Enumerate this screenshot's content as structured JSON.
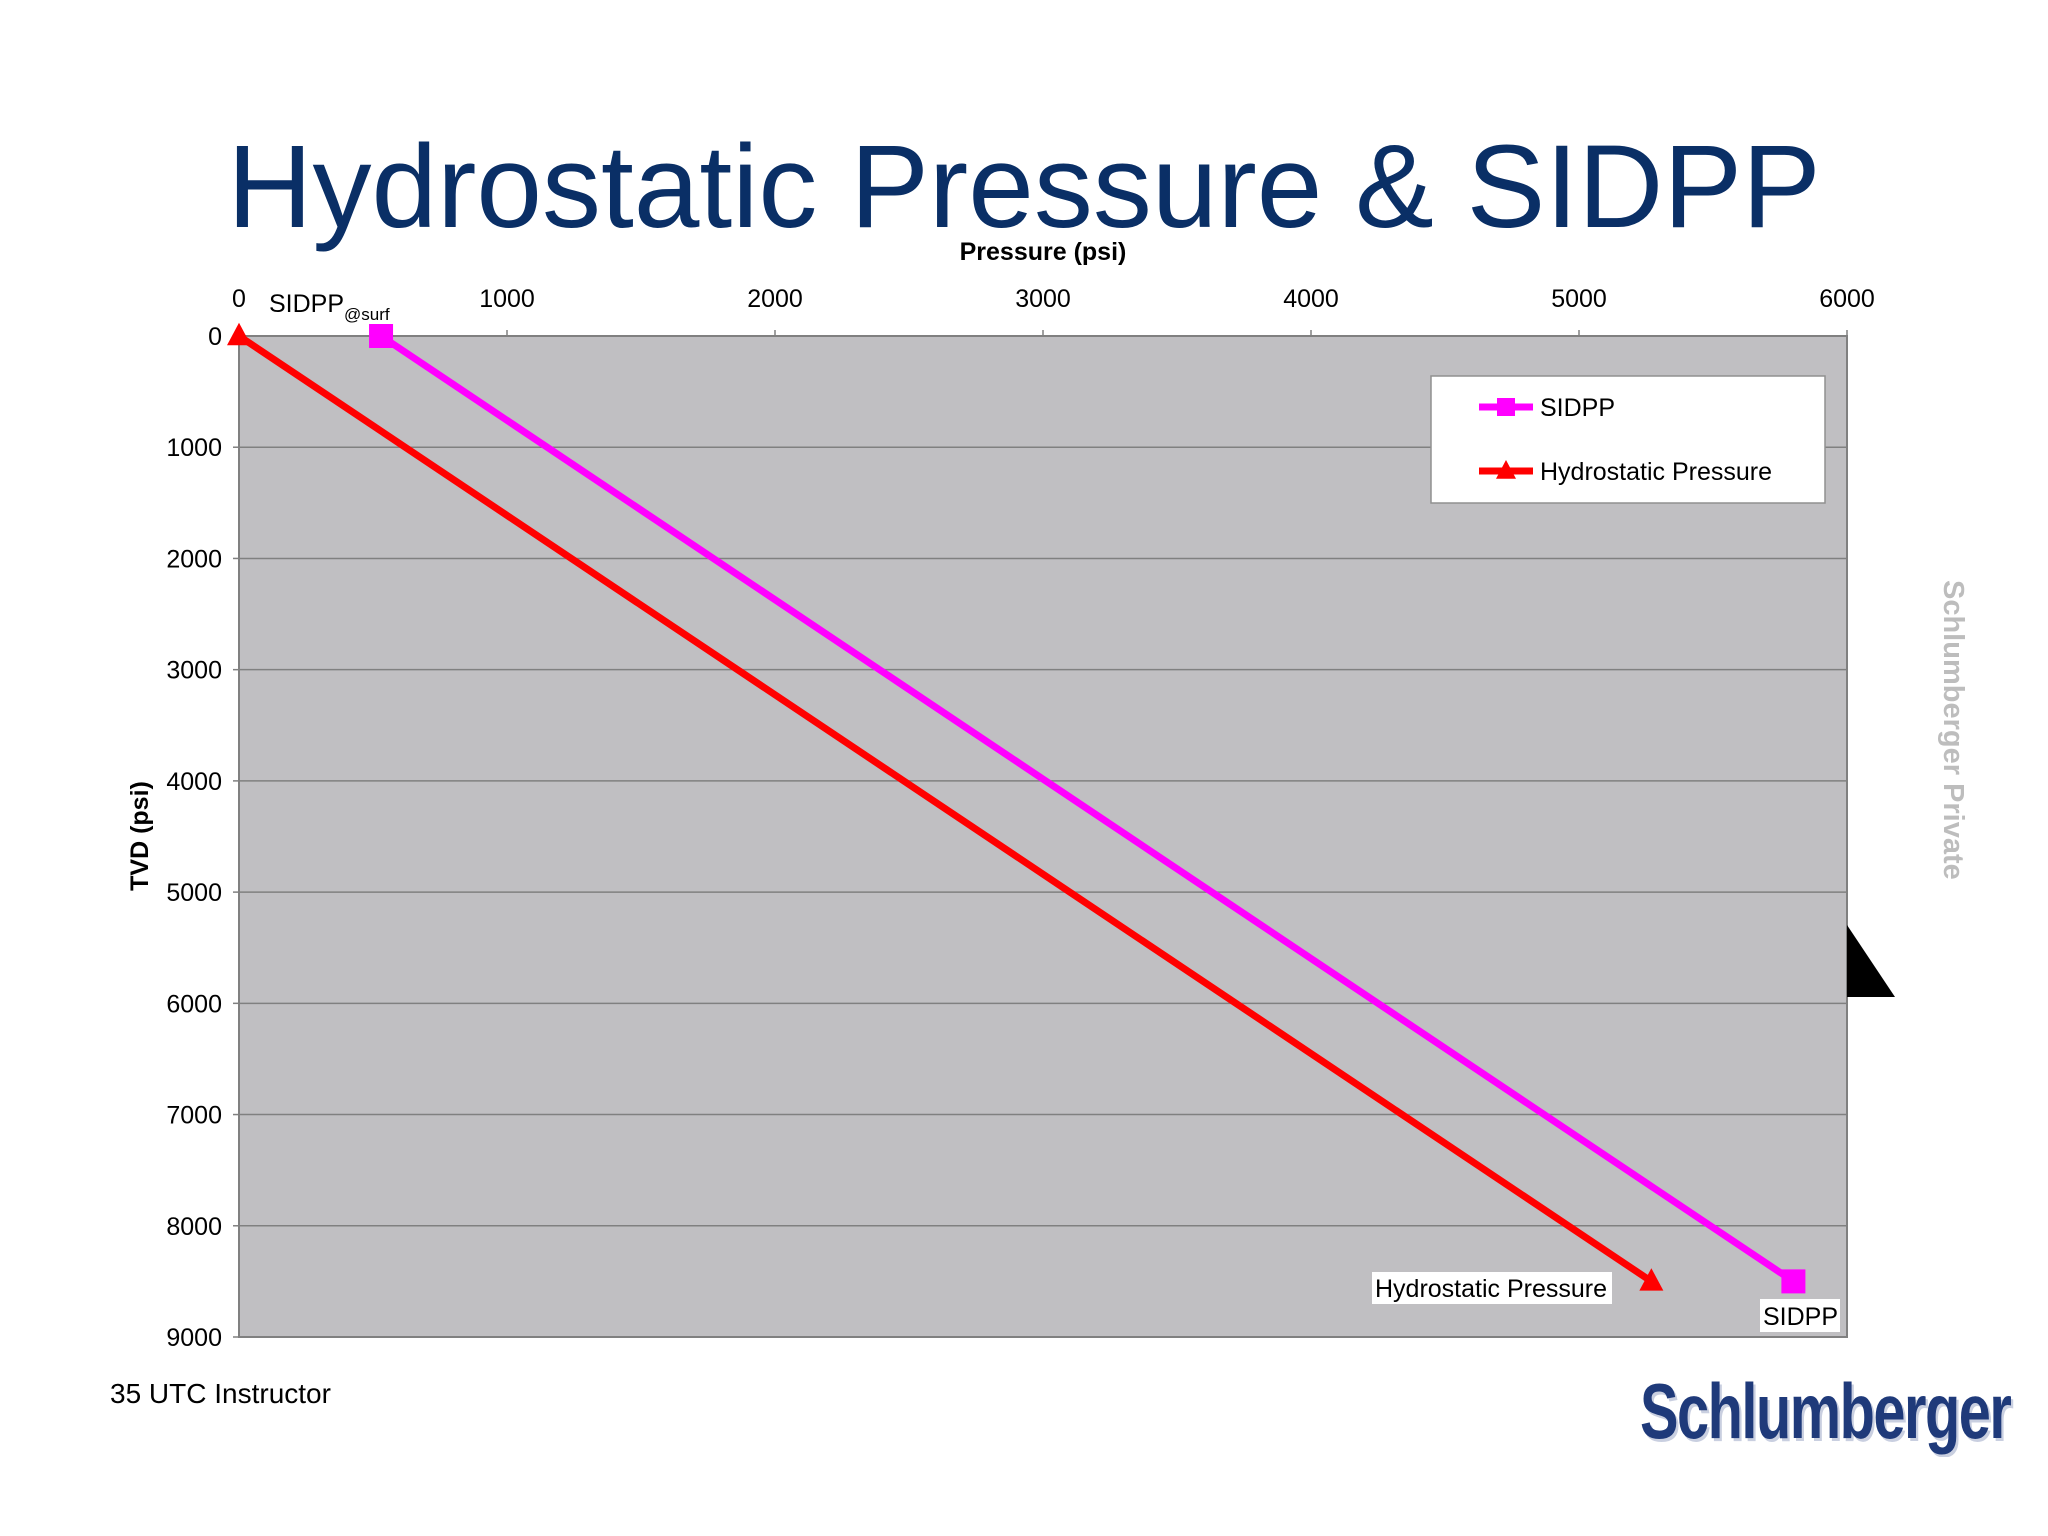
{
  "slide": {
    "title": "Hydrostatic Pressure & SIDPP",
    "footer": "35 UTC Instructor",
    "watermark": "Schlumberger Private",
    "logo": "Schlumberger"
  },
  "colors": {
    "title": "#0a2f66",
    "plot_background": "#c0bfc2",
    "gridline": "#808080",
    "sidpp": "#ff00ff",
    "hydrostatic": "#ff0000",
    "logo": "#1f3a7a"
  },
  "chart_data": {
    "type": "line",
    "title": "",
    "xlabel": "Pressure (psi)",
    "ylabel": "TVD (psi)",
    "xlim": [
      0,
      6000
    ],
    "ylim": [
      0,
      9000
    ],
    "x_axis_position": "top",
    "y_axis_inverted": true,
    "grid": true,
    "x_ticks": [
      "0",
      "1000",
      "2000",
      "3000",
      "4000",
      "5000",
      "6000"
    ],
    "y_ticks": [
      "0",
      "1000",
      "2000",
      "3000",
      "4000",
      "5000",
      "6000",
      "7000",
      "8000",
      "9000"
    ],
    "legend_position": "top-right",
    "series": [
      {
        "name": "SIDPP",
        "color": "#ff00ff",
        "marker": "square",
        "points": [
          {
            "x": 530,
            "y": 0
          },
          {
            "x": 5800,
            "y": 8500
          }
        ]
      },
      {
        "name": "Hydrostatic Pressure",
        "color": "#ff0000",
        "marker": "triangle",
        "points": [
          {
            "x": 0,
            "y": 0
          },
          {
            "x": 5270,
            "y": 8500
          }
        ]
      }
    ],
    "annotations": [
      {
        "text": "SIDPP",
        "subscript": "@surf",
        "x": 530,
        "y": 0
      },
      {
        "text": "Hydrostatic Pressure",
        "x": 5270,
        "y": 8500
      },
      {
        "text": "SIDPP",
        "x": 5800,
        "y": 8500
      }
    ]
  }
}
